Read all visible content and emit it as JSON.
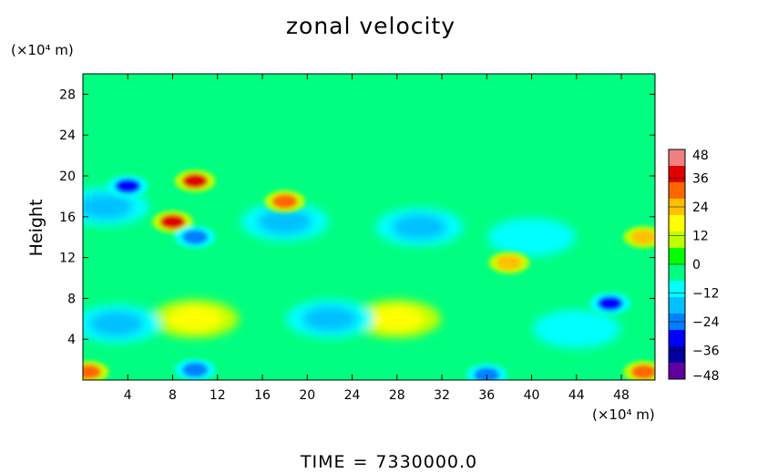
{
  "chart_data": {
    "type": "heatmap",
    "title": "zonal velocity",
    "xlabel": "",
    "ylabel": "Height",
    "x_unit": "(×10⁴ m)",
    "y_unit": "(×10⁴ m)",
    "xlim": [
      0,
      51
    ],
    "ylim": [
      0,
      30
    ],
    "xticks": [
      4,
      8,
      12,
      16,
      20,
      24,
      28,
      32,
      36,
      40,
      44,
      48
    ],
    "yticks": [
      4,
      8,
      12,
      16,
      20,
      24,
      28
    ],
    "colorbar": {
      "ticks": [
        48,
        36,
        24,
        12,
        0,
        -12,
        -24,
        -36,
        -48
      ],
      "range": [
        -48,
        48
      ],
      "colors": [
        "#f08080",
        "#e00000",
        "#ff6600",
        "#ffc000",
        "#ffff00",
        "#c0ff00",
        "#00ff00",
        "#00ff80",
        "#00ffff",
        "#00c0ff",
        "#0080ff",
        "#0000ff",
        "#0000a0",
        "#6000a0"
      ]
    },
    "field_features": [
      {
        "x": 4,
        "y": 19,
        "value": -30
      },
      {
        "x": 10,
        "y": 19.5,
        "value": 36
      },
      {
        "x": 8,
        "y": 15.5,
        "value": 40
      },
      {
        "x": 18,
        "y": 17.5,
        "value": 30
      },
      {
        "x": 18,
        "y": 15.5,
        "value": -18
      },
      {
        "x": 10,
        "y": 14,
        "value": -25
      },
      {
        "x": 2,
        "y": 17,
        "value": -15
      },
      {
        "x": 10,
        "y": 1,
        "value": -25
      },
      {
        "x": 36,
        "y": 0.5,
        "value": -25
      },
      {
        "x": 50,
        "y": 0.8,
        "value": 30
      },
      {
        "x": 0.5,
        "y": 0.8,
        "value": 30
      },
      {
        "x": 47,
        "y": 7.5,
        "value": -28
      },
      {
        "x": 50,
        "y": 14,
        "value": 24
      },
      {
        "x": 38,
        "y": 11.5,
        "value": 22
      },
      {
        "x": 10,
        "y": 6,
        "value": 18
      },
      {
        "x": 28,
        "y": 6,
        "value": 16
      },
      {
        "x": 22,
        "y": 6,
        "value": -16
      },
      {
        "x": 3,
        "y": 5.5,
        "value": -14
      },
      {
        "x": 44,
        "y": 5,
        "value": -12
      },
      {
        "x": 30,
        "y": 15,
        "value": -14
      },
      {
        "x": 40,
        "y": 14,
        "value": -12
      }
    ],
    "footer": "TIME = 7330000.0"
  },
  "footer": {
    "label": "TIME",
    "eq": "=",
    "value": "7330000.0"
  }
}
